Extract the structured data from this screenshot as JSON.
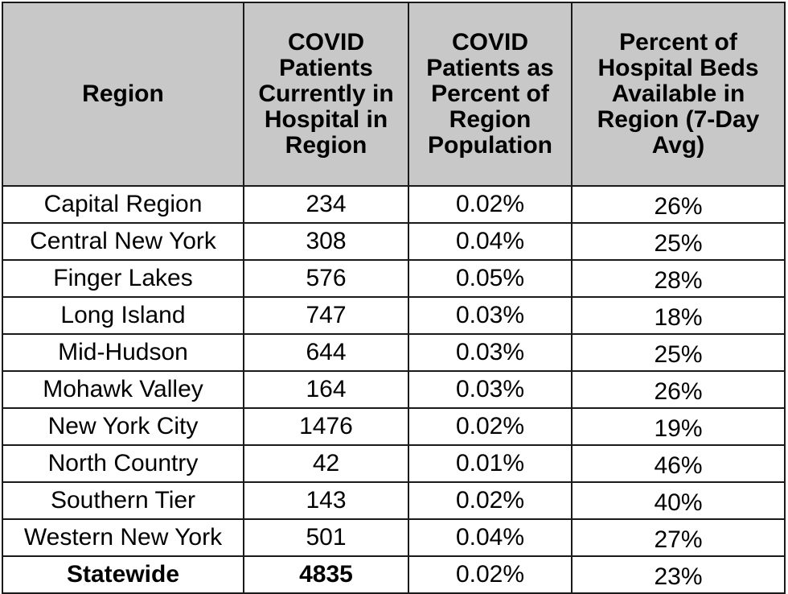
{
  "table": {
    "headers": [
      "Region",
      "COVID Patients Currently in Hospital in Region",
      "COVID Patients as Percent of Region Population",
      "Percent of Hospital Beds Available in Region (7-Day Avg)"
    ],
    "rows": [
      [
        "Capital Region",
        "234",
        "0.02%",
        "26%"
      ],
      [
        "Central New York",
        "308",
        "0.04%",
        "25%"
      ],
      [
        "Finger Lakes",
        "576",
        "0.05%",
        "28%"
      ],
      [
        "Long Island",
        "747",
        "0.03%",
        "18%"
      ],
      [
        "Mid-Hudson",
        "644",
        "0.03%",
        "25%"
      ],
      [
        "Mohawk Valley",
        "164",
        "0.03%",
        "26%"
      ],
      [
        "New York City",
        "1476",
        "0.02%",
        "19%"
      ],
      [
        "North Country",
        "42",
        "0.01%",
        "46%"
      ],
      [
        "Southern Tier",
        "143",
        "0.02%",
        "40%"
      ],
      [
        "Western New York",
        "501",
        "0.04%",
        "27%"
      ]
    ],
    "total": [
      "Statewide",
      "4835",
      "0.02%",
      "23%"
    ]
  },
  "colors": {
    "header_bg": "#c8c8c8",
    "border": "#1a1a1a",
    "cell_bg": "#ffffff"
  }
}
